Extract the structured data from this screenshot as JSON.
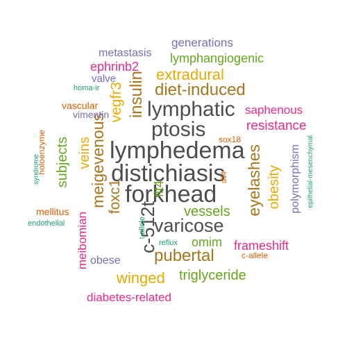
{
  "colors": {
    "dark_gray": "#4d4d4d",
    "brown": "#a6761d",
    "orange": "#e6ab02",
    "magenta": "#e7298a",
    "green": "#66a61e",
    "purple": "#7570b3",
    "teal": "#1b9e77",
    "red_orange": "#d95f02"
  },
  "words": [
    {
      "text": "lymphedema",
      "color": "dark_gray",
      "size": 34
    },
    {
      "text": "distichiasis",
      "color": "dark_gray",
      "size": 34
    },
    {
      "text": "forkhead",
      "color": "dark_gray",
      "size": 34
    },
    {
      "text": "lymphatic",
      "color": "dark_gray",
      "size": 30
    },
    {
      "text": "ptosis",
      "color": "dark_gray",
      "size": 30
    },
    {
      "text": "varicose",
      "color": "dark_gray",
      "size": 27
    },
    {
      "text": "c-512t",
      "color": "dark_gray",
      "size": 27,
      "vertical": true
    },
    {
      "text": "diet-induced",
      "color": "brown",
      "size": 24
    },
    {
      "text": "pubertal",
      "color": "brown",
      "size": 24
    },
    {
      "text": "insulin",
      "color": "brown",
      "size": 24,
      "vertical": true
    },
    {
      "text": "meigevenous",
      "color": "brown",
      "size": 23,
      "vertical": true
    },
    {
      "text": "eyelashes",
      "color": "brown",
      "size": 23,
      "vertical": true
    },
    {
      "text": "foxc1",
      "color": "brown",
      "size": 21,
      "vertical": true
    },
    {
      "text": "extradural",
      "color": "orange",
      "size": 22
    },
    {
      "text": "winged",
      "color": "orange",
      "size": 22
    },
    {
      "text": "vegfr3",
      "color": "orange",
      "size": 21,
      "vertical": true
    },
    {
      "text": "obesity",
      "color": "orange",
      "size": 20,
      "vertical": true
    },
    {
      "text": "veins",
      "color": "orange",
      "size": 20,
      "vertical": true
    },
    {
      "text": "triglyceride",
      "color": "green",
      "size": 20
    },
    {
      "text": "vessels",
      "color": "green",
      "size": 20
    },
    {
      "text": "subjects",
      "color": "green",
      "size": 20,
      "vertical": true
    },
    {
      "text": "lymphangiogenic",
      "color": "green",
      "size": 18
    },
    {
      "text": "omim",
      "color": "green",
      "size": 18
    },
    {
      "text": "flt4",
      "color": "green",
      "size": 18,
      "vertical": true
    },
    {
      "text": "resistance",
      "color": "magenta",
      "size": 19
    },
    {
      "text": "frameshift",
      "color": "magenta",
      "size": 18
    },
    {
      "text": "ephrinb2",
      "color": "magenta",
      "size": 18
    },
    {
      "text": "saphenous",
      "color": "magenta",
      "size": 17
    },
    {
      "text": "diabetes-related",
      "color": "magenta",
      "size": 17
    },
    {
      "text": "meibomian",
      "color": "magenta",
      "size": 17,
      "vertical": true
    },
    {
      "text": "generations",
      "color": "purple",
      "size": 17
    },
    {
      "text": "metastasis",
      "color": "purple",
      "size": 16
    },
    {
      "text": "obese",
      "color": "purple",
      "size": 16
    },
    {
      "text": "valve",
      "color": "purple",
      "size": 15
    },
    {
      "text": "vimentin",
      "color": "purple",
      "size": 14
    },
    {
      "text": "polymorphism",
      "color": "purple",
      "size": 16,
      "vertical": true
    },
    {
      "text": "vascular",
      "color": "red_orange",
      "size": 14
    },
    {
      "text": "mellitus",
      "color": "red_orange",
      "size": 14
    },
    {
      "text": "sox18",
      "color": "red_orange",
      "size": 12
    },
    {
      "text": "c-allele",
      "color": "red_orange",
      "size": 12
    },
    {
      "text": "holoenzyme",
      "color": "red_orange",
      "size": 12,
      "vertical": true
    },
    {
      "text": "dll4",
      "color": "red_orange",
      "size": 11,
      "vertical": true
    },
    {
      "text": "homa-ir",
      "color": "teal",
      "size": 11
    },
    {
      "text": "endothelial",
      "color": "teal",
      "size": 11
    },
    {
      "text": "reflux",
      "color": "teal",
      "size": 11
    },
    {
      "text": "t-allele",
      "color": "teal",
      "size": 11,
      "vertical": true
    },
    {
      "text": "syndrome",
      "color": "teal",
      "size": 10,
      "vertical": true
    },
    {
      "text": "epithelial-mesenchymal",
      "color": "teal",
      "size": 10,
      "vertical": true
    }
  ]
}
